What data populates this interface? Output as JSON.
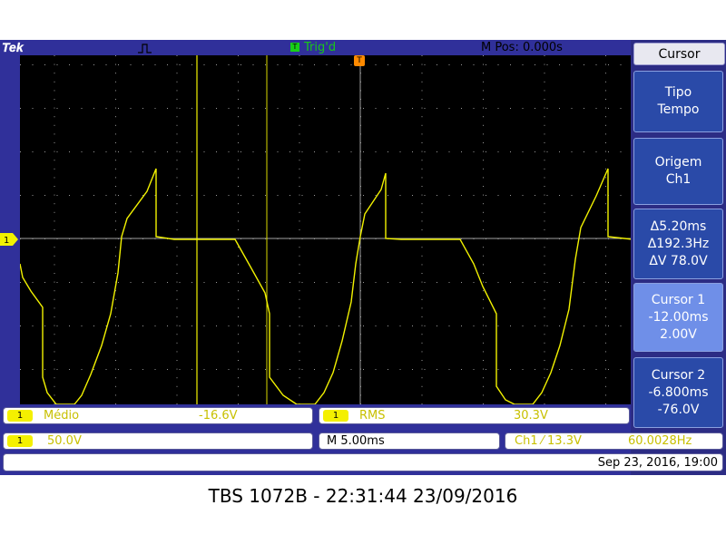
{
  "scope": {
    "brand": "Tek",
    "run_icon": "run-pulse-icon",
    "trigger_status": "Trig'd",
    "horizontal_position": "M Pos: 0.000s",
    "ch1_marker": "1",
    "trigger_marker": "T",
    "colors": {
      "trace": "#f2f200",
      "screen_bg": "#000000",
      "frame_bg": "#30309a",
      "menu_bg": "#2a4aa8"
    }
  },
  "side_menu": {
    "title": "Cursor",
    "items": [
      {
        "line1": "Tipo",
        "line2": "Tempo",
        "line3": ""
      },
      {
        "line1": "Origem",
        "line2": "Ch1",
        "line3": ""
      },
      {
        "line1": "Δ5.20ms",
        "line2": "Δ192.3Hz",
        "line3": "ΔV 78.0V"
      },
      {
        "line1": "Cursor 1",
        "line2": "-12.00ms",
        "line3": "2.00V"
      },
      {
        "line1": "Cursor 2",
        "line2": "-6.800ms",
        "line3": "-76.0V"
      }
    ]
  },
  "measurements": {
    "m1_channel": "1",
    "m1_label": "Médio",
    "m1_value": "-16.6V",
    "m2_channel": "1",
    "m2_label": "RMS",
    "m2_value": "30.3V"
  },
  "status": {
    "ch1_channel": "1",
    "ch1_scale": "50.0V",
    "timebase": "M 5.00ms",
    "trigger": "Ch1 ⁄ 13.3V",
    "frequency": "60.0028Hz",
    "datetime": "Sep 23, 2016, 19:00"
  },
  "caption": "TBS 1072B - 22:31:44   23/09/2016"
}
